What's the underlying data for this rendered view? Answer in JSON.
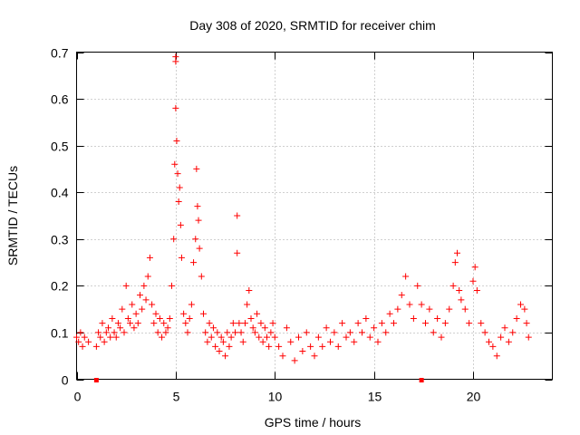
{
  "chart_data": {
    "type": "scatter",
    "title": "Day 308 of 2020, SRMTID for receiver chim",
    "xlabel": "GPS time / hours",
    "ylabel": "SRMTID / TECUs",
    "xlim": [
      0,
      24
    ],
    "ylim": [
      0,
      0.7
    ],
    "xticks": [
      0,
      5,
      10,
      15,
      20
    ],
    "yticks": [
      0,
      0.1,
      0.2,
      0.3,
      0.4,
      0.5,
      0.6,
      0.7
    ],
    "grid": true,
    "marker": "+",
    "color": "#ff0000",
    "series": [
      {
        "name": "SRMTID",
        "points": [
          [
            0.0,
            0.09
          ],
          [
            0.1,
            0.08
          ],
          [
            0.2,
            0.1
          ],
          [
            0.3,
            0.07
          ],
          [
            0.4,
            0.09
          ],
          [
            0.6,
            0.08
          ],
          [
            1.0,
            0.07
          ],
          [
            1.1,
            0.1
          ],
          [
            1.2,
            0.09
          ],
          [
            1.3,
            0.12
          ],
          [
            1.4,
            0.08
          ],
          [
            1.5,
            0.1
          ],
          [
            1.6,
            0.11
          ],
          [
            1.7,
            0.09
          ],
          [
            1.8,
            0.13
          ],
          [
            1.9,
            0.1
          ],
          [
            2.0,
            0.09
          ],
          [
            2.1,
            0.12
          ],
          [
            2.2,
            0.11
          ],
          [
            2.3,
            0.15
          ],
          [
            2.4,
            0.1
          ],
          [
            2.5,
            0.2
          ],
          [
            2.6,
            0.13
          ],
          [
            2.7,
            0.12
          ],
          [
            2.8,
            0.16
          ],
          [
            2.9,
            0.11
          ],
          [
            3.0,
            0.14
          ],
          [
            3.1,
            0.12
          ],
          [
            3.2,
            0.18
          ],
          [
            3.3,
            0.15
          ],
          [
            3.4,
            0.2
          ],
          [
            3.5,
            0.17
          ],
          [
            3.6,
            0.22
          ],
          [
            3.7,
            0.26
          ],
          [
            3.8,
            0.16
          ],
          [
            3.9,
            0.12
          ],
          [
            4.0,
            0.14
          ],
          [
            4.1,
            0.1
          ],
          [
            4.2,
            0.13
          ],
          [
            4.3,
            0.09
          ],
          [
            4.4,
            0.12
          ],
          [
            4.5,
            0.1
          ],
          [
            4.6,
            0.11
          ],
          [
            4.7,
            0.13
          ],
          [
            4.8,
            0.2
          ],
          [
            4.9,
            0.3
          ],
          [
            4.95,
            0.46
          ],
          [
            5.0,
            0.58
          ],
          [
            5.0,
            0.68
          ],
          [
            5.0,
            0.69
          ],
          [
            5.05,
            0.51
          ],
          [
            5.1,
            0.44
          ],
          [
            5.15,
            0.38
          ],
          [
            5.2,
            0.41
          ],
          [
            5.25,
            0.33
          ],
          [
            5.3,
            0.26
          ],
          [
            5.4,
            0.14
          ],
          [
            5.5,
            0.12
          ],
          [
            5.6,
            0.1
          ],
          [
            5.7,
            0.13
          ],
          [
            5.8,
            0.16
          ],
          [
            5.9,
            0.25
          ],
          [
            6.0,
            0.3
          ],
          [
            6.05,
            0.45
          ],
          [
            6.1,
            0.37
          ],
          [
            6.15,
            0.34
          ],
          [
            6.2,
            0.28
          ],
          [
            6.3,
            0.22
          ],
          [
            6.4,
            0.14
          ],
          [
            6.5,
            0.1
          ],
          [
            6.6,
            0.08
          ],
          [
            6.7,
            0.12
          ],
          [
            6.8,
            0.09
          ],
          [
            6.9,
            0.11
          ],
          [
            7.0,
            0.07
          ],
          [
            7.1,
            0.1
          ],
          [
            7.2,
            0.06
          ],
          [
            7.3,
            0.09
          ],
          [
            7.4,
            0.08
          ],
          [
            7.5,
            0.05
          ],
          [
            7.6,
            0.1
          ],
          [
            7.7,
            0.07
          ],
          [
            7.8,
            0.09
          ],
          [
            7.9,
            0.12
          ],
          [
            8.0,
            0.1
          ],
          [
            8.1,
            0.35
          ],
          [
            8.1,
            0.27
          ],
          [
            8.2,
            0.12
          ],
          [
            8.3,
            0.1
          ],
          [
            8.4,
            0.08
          ],
          [
            8.5,
            0.12
          ],
          [
            8.6,
            0.16
          ],
          [
            8.7,
            0.19
          ],
          [
            8.8,
            0.13
          ],
          [
            8.9,
            0.11
          ],
          [
            9.0,
            0.1
          ],
          [
            9.1,
            0.14
          ],
          [
            9.2,
            0.09
          ],
          [
            9.3,
            0.12
          ],
          [
            9.4,
            0.08
          ],
          [
            9.5,
            0.11
          ],
          [
            9.6,
            0.09
          ],
          [
            9.7,
            0.07
          ],
          [
            9.8,
            0.1
          ],
          [
            9.9,
            0.12
          ],
          [
            10.0,
            0.09
          ],
          [
            10.2,
            0.07
          ],
          [
            10.4,
            0.05
          ],
          [
            10.6,
            0.11
          ],
          [
            10.8,
            0.08
          ],
          [
            11.0,
            0.04
          ],
          [
            11.2,
            0.09
          ],
          [
            11.4,
            0.06
          ],
          [
            11.6,
            0.1
          ],
          [
            11.8,
            0.07
          ],
          [
            12.0,
            0.05
          ],
          [
            12.2,
            0.09
          ],
          [
            12.4,
            0.07
          ],
          [
            12.6,
            0.11
          ],
          [
            12.8,
            0.08
          ],
          [
            13.0,
            0.1
          ],
          [
            13.2,
            0.07
          ],
          [
            13.4,
            0.12
          ],
          [
            13.6,
            0.09
          ],
          [
            13.8,
            0.1
          ],
          [
            14.0,
            0.08
          ],
          [
            14.2,
            0.12
          ],
          [
            14.4,
            0.1
          ],
          [
            14.6,
            0.13
          ],
          [
            14.8,
            0.09
          ],
          [
            15.0,
            0.11
          ],
          [
            15.2,
            0.08
          ],
          [
            15.4,
            0.12
          ],
          [
            15.6,
            0.1
          ],
          [
            15.8,
            0.14
          ],
          [
            16.0,
            0.12
          ],
          [
            16.2,
            0.15
          ],
          [
            16.4,
            0.18
          ],
          [
            16.6,
            0.22
          ],
          [
            16.8,
            0.16
          ],
          [
            17.0,
            0.13
          ],
          [
            17.2,
            0.2
          ],
          [
            17.4,
            0.16
          ],
          [
            17.6,
            0.12
          ],
          [
            17.8,
            0.15
          ],
          [
            18.0,
            0.1
          ],
          [
            18.2,
            0.13
          ],
          [
            18.4,
            0.09
          ],
          [
            18.6,
            0.12
          ],
          [
            18.8,
            0.15
          ],
          [
            19.0,
            0.2
          ],
          [
            19.1,
            0.25
          ],
          [
            19.2,
            0.27
          ],
          [
            19.3,
            0.19
          ],
          [
            19.4,
            0.17
          ],
          [
            19.6,
            0.15
          ],
          [
            19.8,
            0.12
          ],
          [
            20.0,
            0.21
          ],
          [
            20.1,
            0.24
          ],
          [
            20.2,
            0.19
          ],
          [
            20.4,
            0.12
          ],
          [
            20.6,
            0.1
          ],
          [
            20.8,
            0.08
          ],
          [
            21.0,
            0.07
          ],
          [
            21.2,
            0.05
          ],
          [
            21.4,
            0.09
          ],
          [
            21.6,
            0.11
          ],
          [
            21.8,
            0.08
          ],
          [
            22.0,
            0.1
          ],
          [
            22.2,
            0.13
          ],
          [
            22.4,
            0.16
          ],
          [
            22.6,
            0.15
          ],
          [
            22.7,
            0.12
          ],
          [
            22.8,
            0.09
          ]
        ]
      }
    ],
    "axis_markers": {
      "color": "#ff0000",
      "x_positions": [
        1.0,
        17.4
      ]
    }
  }
}
